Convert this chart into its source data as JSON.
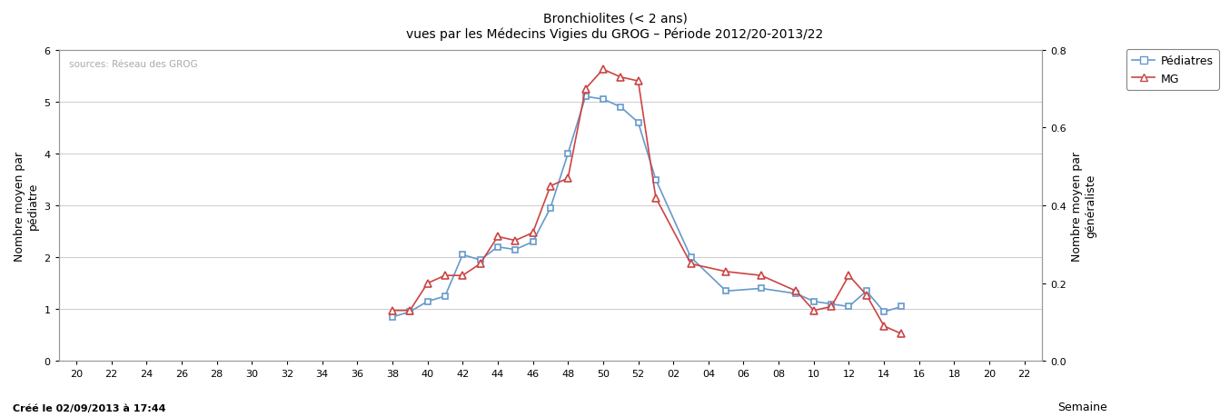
{
  "title_line1": "Bronchiolites (< 2 ans)",
  "title_line2": "vues par les Médecins Vigies du GROG – Période 2012/20-2013/22",
  "xlabel": "Semaine",
  "ylabel_left": "Nombre moyen par\npédiatre",
  "ylabel_right": "Nombre moyen par\ngénéraliste",
  "source_text": "sources: Réseau des GROG",
  "credit_text": "Créé le 02/09/2013 à 17:44",
  "legend_pediatres": "Pédiatres",
  "legend_mg": "MG",
  "color_pediatres": "#6699CC",
  "color_mg": "#CC4444",
  "ylim_left": [
    0.0,
    6.0
  ],
  "ylim_right": [
    0.0,
    0.8
  ],
  "x_ticks_labels": [
    "20",
    "22",
    "24",
    "26",
    "28",
    "30",
    "32",
    "34",
    "36",
    "38",
    "40",
    "42",
    "44",
    "46",
    "48",
    "50",
    "52",
    "02",
    "04",
    "06",
    "08",
    "10",
    "12",
    "14",
    "16",
    "18",
    "20",
    "22"
  ],
  "pediatres_weeks_seq": [
    38,
    39,
    40,
    41,
    42,
    43,
    44,
    45,
    46,
    47,
    48,
    49,
    50,
    51,
    52,
    53,
    55,
    57,
    59,
    61,
    62,
    63,
    64,
    65,
    66,
    67
  ],
  "pediatres_values": [
    0.85,
    0.95,
    1.15,
    1.25,
    2.05,
    1.95,
    2.2,
    2.15,
    2.3,
    2.95,
    4.0,
    5.1,
    5.05,
    4.9,
    4.6,
    3.5,
    2.0,
    1.35,
    1.4,
    1.3,
    1.15,
    1.1,
    1.05,
    1.35,
    0.95,
    1.05
  ],
  "mg_weeks_seq": [
    38,
    39,
    40,
    41,
    42,
    43,
    44,
    45,
    46,
    47,
    48,
    49,
    50,
    51,
    52,
    53,
    55,
    57,
    59,
    61,
    62,
    63,
    64,
    65,
    66,
    67
  ],
  "mg_values": [
    0.13,
    0.13,
    0.2,
    0.22,
    0.22,
    0.25,
    0.32,
    0.31,
    0.33,
    0.45,
    0.47,
    0.7,
    0.75,
    0.73,
    0.72,
    0.42,
    0.25,
    0.23,
    0.22,
    0.18,
    0.13,
    0.14,
    0.22,
    0.17,
    0.09,
    0.07
  ],
  "background_color": "#ffffff",
  "grid_color": "#cccccc",
  "yticks_left": [
    0.0,
    1.0,
    2.0,
    3.0,
    4.0,
    5.0,
    6.0
  ],
  "yticks_right": [
    0.0,
    0.2,
    0.4,
    0.6,
    0.8
  ]
}
